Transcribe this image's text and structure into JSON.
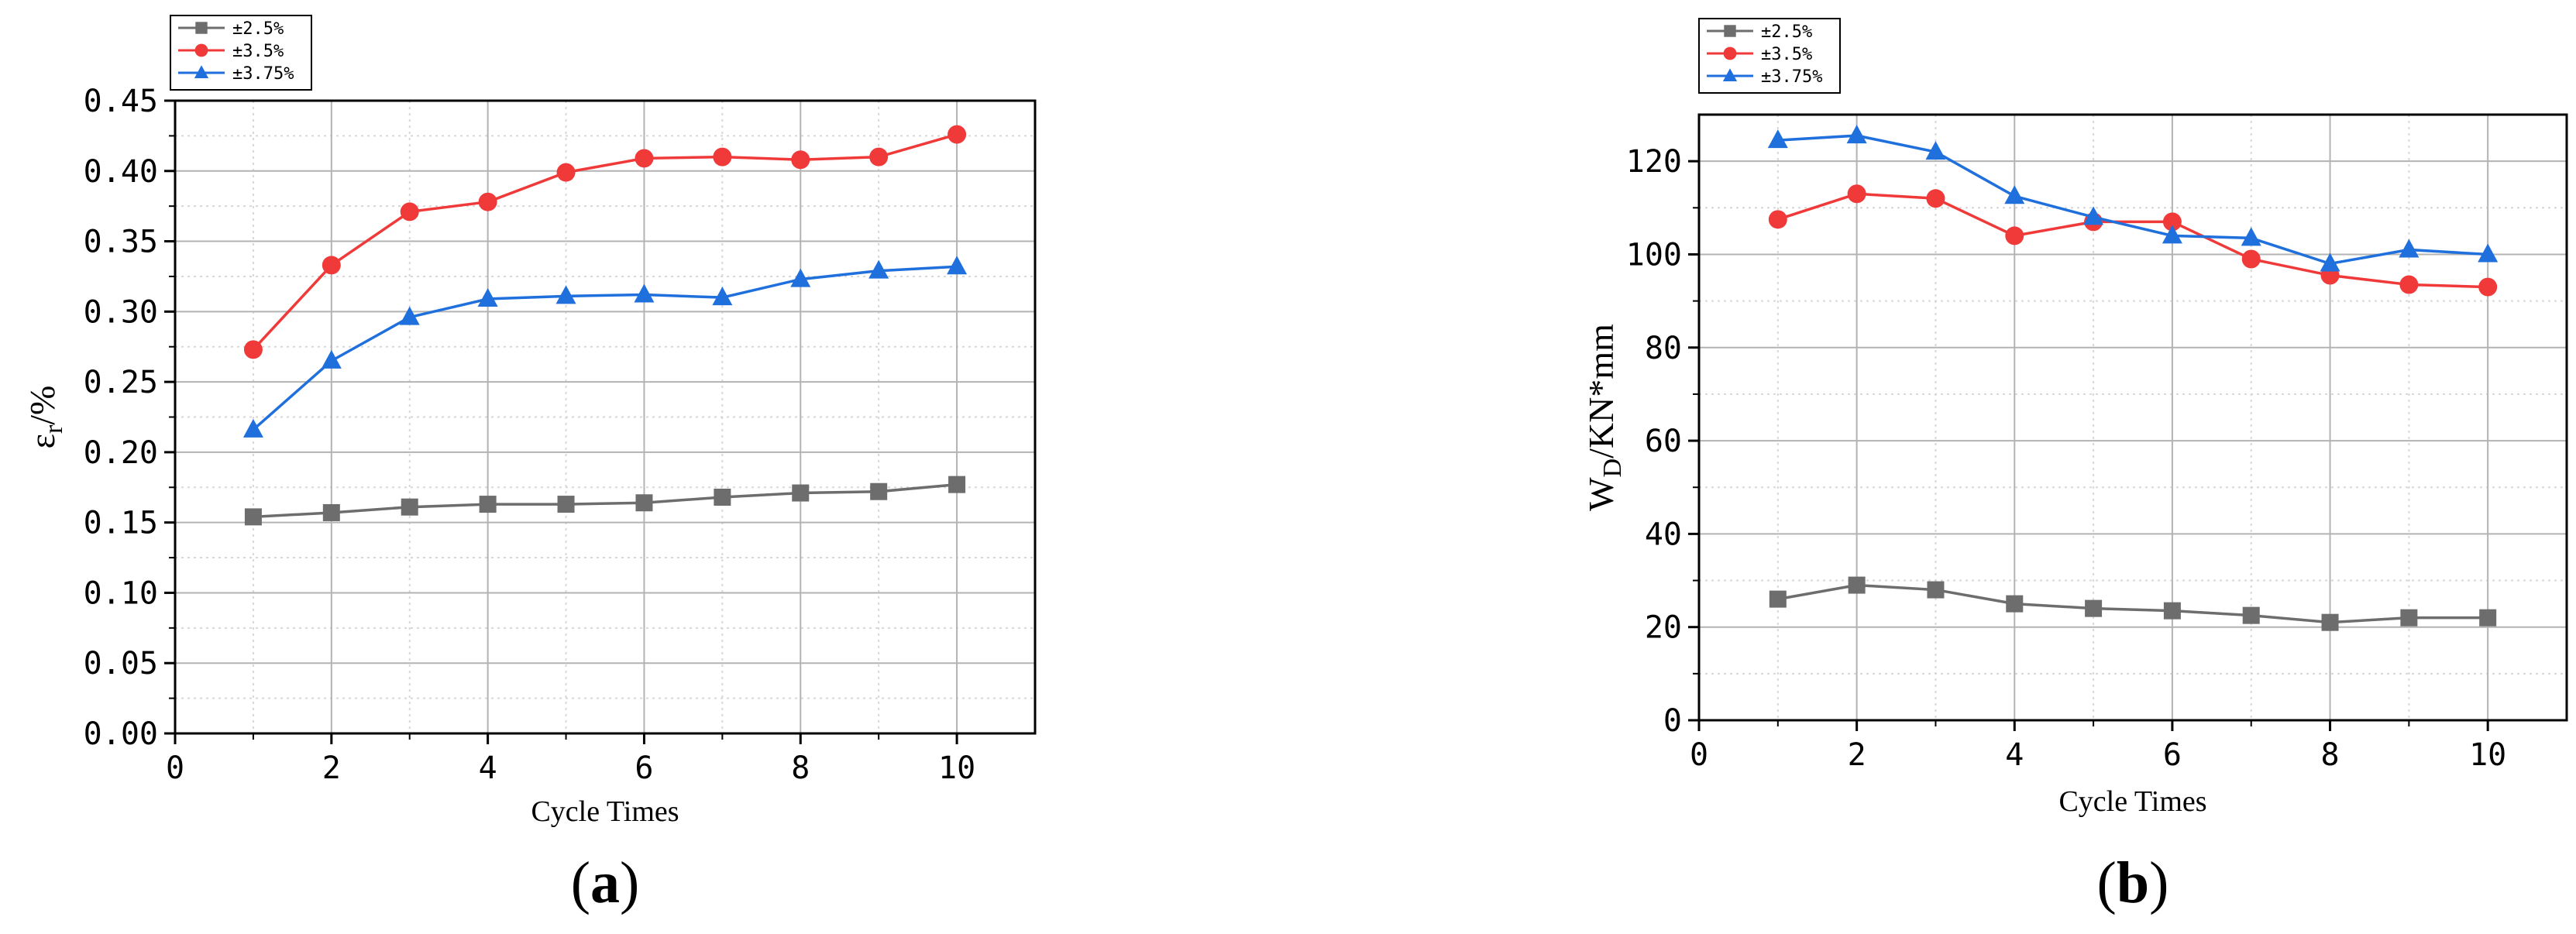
{
  "colors": {
    "series_2_5": "#6d6d6d",
    "series_3_5": "#f03a3a",
    "series_3_75": "#1f6fdd",
    "grid_major": "#b3b3b3",
    "grid_minor": "#d7d7d7"
  },
  "chart_data": [
    {
      "type": "line",
      "panel_label": "(a)",
      "panel_letter": "a",
      "xlabel": "Cycle Times",
      "ylabel_main": "ε",
      "ylabel_sub": "r",
      "ylabel_tail": "/%",
      "xlim": [
        0,
        11
      ],
      "ylim": [
        0,
        0.45
      ],
      "x_ticks": [
        "0",
        "2",
        "4",
        "6",
        "8",
        "10"
      ],
      "y_ticks": [
        "0.00",
        "0.05",
        "0.10",
        "0.15",
        "0.20",
        "0.25",
        "0.30",
        "0.35",
        "0.40",
        "0.45"
      ],
      "grid": true,
      "legend_position": "top-left, outside above plot",
      "x": [
        1,
        2,
        3,
        4,
        5,
        6,
        7,
        8,
        9,
        10
      ],
      "series": [
        {
          "name": "±2.5%",
          "marker": "square",
          "values": [
            0.154,
            0.157,
            0.161,
            0.163,
            0.163,
            0.164,
            0.168,
            0.171,
            0.172,
            0.177
          ]
        },
        {
          "name": "±3.5%",
          "marker": "circle",
          "values": [
            0.273,
            0.333,
            0.371,
            0.378,
            0.399,
            0.409,
            0.41,
            0.408,
            0.41,
            0.426
          ]
        },
        {
          "name": "±3.75%",
          "marker": "triangle",
          "values": [
            0.216,
            0.265,
            0.296,
            0.309,
            0.311,
            0.312,
            0.31,
            0.323,
            0.329,
            0.332
          ]
        }
      ]
    },
    {
      "type": "line",
      "panel_label": "(b)",
      "panel_letter": "b",
      "xlabel": "Cycle Times",
      "ylabel_main": "W",
      "ylabel_sub": "D",
      "ylabel_tail": "/KN*mm",
      "xlim": [
        0,
        11
      ],
      "ylim": [
        0,
        130
      ],
      "x_ticks": [
        "0",
        "2",
        "4",
        "6",
        "8",
        "10"
      ],
      "y_ticks": [
        "0",
        "20",
        "40",
        "60",
        "80",
        "100",
        "120"
      ],
      "grid": true,
      "legend_position": "top-left, outside above plot",
      "x": [
        1,
        2,
        3,
        4,
        5,
        6,
        7,
        8,
        9,
        10
      ],
      "series": [
        {
          "name": "±2.5%",
          "marker": "square",
          "values": [
            26,
            29,
            28,
            25,
            24,
            23.5,
            22.5,
            21,
            22,
            22
          ]
        },
        {
          "name": "±3.5%",
          "marker": "circle",
          "values": [
            107.5,
            113,
            112,
            104,
            107,
            107,
            99,
            95.5,
            93.5,
            93
          ]
        },
        {
          "name": "±3.75%",
          "marker": "triangle",
          "values": [
            124.5,
            125.5,
            122,
            112.5,
            108,
            104,
            103.5,
            98,
            101,
            100
          ]
        }
      ]
    }
  ]
}
